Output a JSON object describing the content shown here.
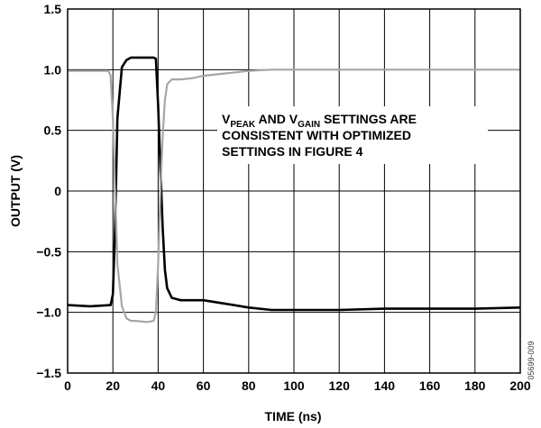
{
  "chart_data": {
    "type": "line",
    "title": "",
    "xlabel": "TIME (ns)",
    "ylabel": "OUTPUT (V)",
    "xlim": [
      0,
      200
    ],
    "ylim": [
      -1.5,
      1.5
    ],
    "x_ticks": [
      "0",
      "20",
      "40",
      "60",
      "80",
      "100",
      "120",
      "140",
      "160",
      "180",
      "200"
    ],
    "y_ticks": [
      "1.5",
      "1.0",
      "0.5",
      "0",
      "−0.5",
      "−1.0",
      "−1.5"
    ],
    "grid": true,
    "annotation": {
      "line1_pre": "V",
      "line1_sub1": "PEAK",
      "line1_mid": " AND V",
      "line1_sub2": "GAIN",
      "line1_post": " SETTINGS ARE",
      "line2": "CONSISTENT WITH OPTIMIZED",
      "line3": "SETTINGS IN FIGURE 4"
    },
    "figure_id": "05699-009",
    "series": [
      {
        "color": "#000000",
        "x": [
          0,
          10,
          19,
          20,
          21,
          22,
          24,
          26,
          28,
          30,
          35,
          38,
          39,
          40,
          41,
          42,
          43,
          44,
          46,
          50,
          55,
          60,
          70,
          80,
          90,
          100,
          120,
          140,
          160,
          180,
          200
        ],
        "y": [
          -0.94,
          -0.95,
          -0.94,
          -0.85,
          -0.3,
          0.6,
          1.02,
          1.08,
          1.1,
          1.1,
          1.1,
          1.1,
          1.09,
          0.7,
          0.2,
          -0.3,
          -0.65,
          -0.8,
          -0.88,
          -0.9,
          -0.9,
          -0.9,
          -0.93,
          -0.96,
          -0.98,
          -0.98,
          -0.98,
          -0.97,
          -0.97,
          -0.97,
          -0.96
        ]
      },
      {
        "color": "#a6a6a6",
        "x": [
          0,
          10,
          18,
          19,
          20,
          21,
          22,
          24,
          26,
          28,
          30,
          35,
          38,
          39,
          40,
          41,
          42,
          43,
          44,
          46,
          50,
          55,
          60,
          70,
          80,
          90,
          100,
          120,
          140,
          160,
          180,
          200
        ],
        "y": [
          0.99,
          0.99,
          0.99,
          0.95,
          0.6,
          0.0,
          -0.6,
          -0.95,
          -1.05,
          -1.07,
          -1.07,
          -1.08,
          -1.07,
          -1.0,
          -0.6,
          0.0,
          0.45,
          0.75,
          0.88,
          0.92,
          0.92,
          0.93,
          0.95,
          0.97,
          0.99,
          1.0,
          1.0,
          1.0,
          1.0,
          1.0,
          1.0,
          1.0
        ]
      }
    ]
  }
}
